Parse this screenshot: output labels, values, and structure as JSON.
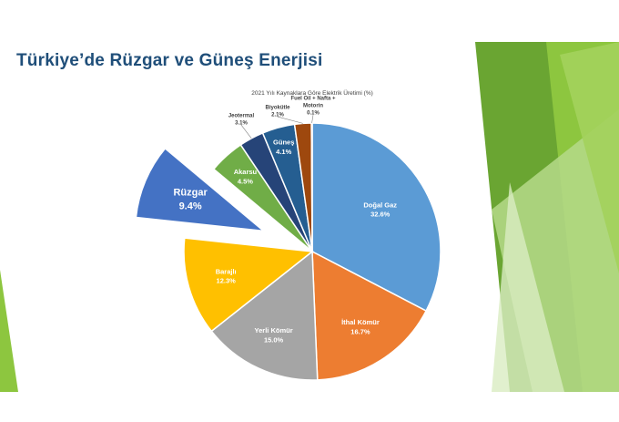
{
  "slide": {
    "title": "Türkiye’de Rüzgar ve Güneş Enerjisi",
    "accent_color": "#8dc63f"
  },
  "chart_data": {
    "type": "pie",
    "title": "2021 Yılı Kaynaklara Göre Elektrik Üretimi (%)",
    "slices": [
      {
        "label": "Doğal Gaz",
        "value": 32.6,
        "color": "#5b9bd5",
        "exploded": false,
        "label_inside": true
      },
      {
        "label": "İthal Kömür",
        "value": 16.7,
        "color": "#ed7d31",
        "exploded": false,
        "label_inside": true
      },
      {
        "label": "Yerli Kömür",
        "value": 15.0,
        "color": "#a5a5a5",
        "exploded": false,
        "label_inside": true
      },
      {
        "label": "Barajlı",
        "value": 12.3,
        "color": "#ffc000",
        "exploded": false,
        "label_inside": true
      },
      {
        "label": "Rüzgar",
        "value": 9.4,
        "color": "#4472c4",
        "exploded": true,
        "label_inside": true
      },
      {
        "label": "Akarsu",
        "value": 4.5,
        "color": "#70ad47",
        "exploded": false,
        "label_inside": true
      },
      {
        "label": "Jeotermal",
        "value": 3.1,
        "color": "#264478",
        "exploded": false,
        "label_inside": false
      },
      {
        "label": "Güneş",
        "value": 4.1,
        "color": "#255e91",
        "exploded": false,
        "label_inside": true
      },
      {
        "label": "Biyokütle",
        "value": 2.1,
        "color": "#9e480e",
        "exploded": false,
        "label_inside": false
      },
      {
        "label": "Fuel Oil + Nafta + Motorin",
        "value": 0.1,
        "color": "#636363",
        "exploded": false,
        "label_inside": false
      }
    ],
    "legend": "none"
  }
}
